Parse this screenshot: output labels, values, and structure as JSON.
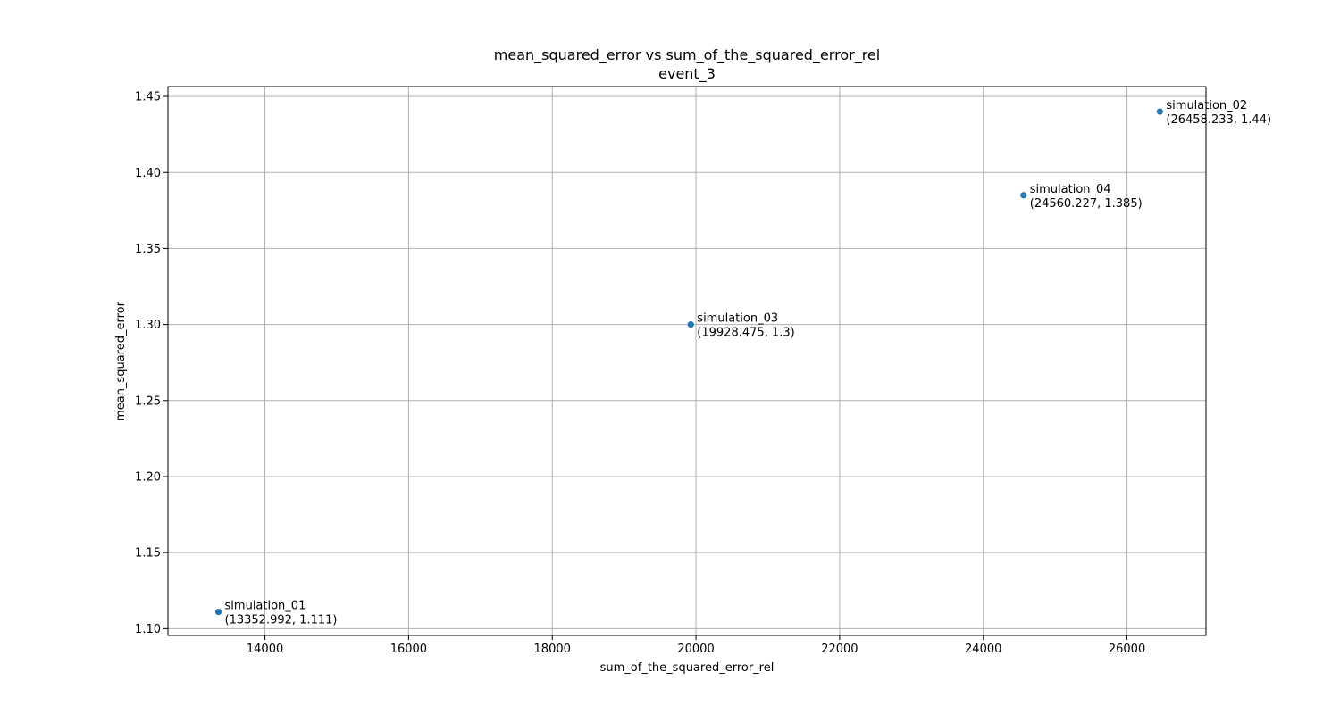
{
  "chart_data": {
    "type": "scatter",
    "title": "mean_squared_error vs sum_of_the_squared_error_rel",
    "subtitle": "event_3",
    "xlabel": "sum_of_the_squared_error_rel",
    "ylabel": "mean_squared_error",
    "xlim": [
      12650,
      27100
    ],
    "ylim": [
      1.0955,
      1.4565
    ],
    "xticks": [
      14000,
      16000,
      18000,
      20000,
      22000,
      24000,
      26000
    ],
    "xtick_labels": [
      "14000",
      "16000",
      "18000",
      "20000",
      "22000",
      "24000",
      "26000"
    ],
    "yticks": [
      1.1,
      1.15,
      1.2,
      1.25,
      1.3,
      1.35,
      1.4,
      1.45
    ],
    "ytick_labels": [
      "1.10",
      "1.15",
      "1.20",
      "1.25",
      "1.30",
      "1.35",
      "1.40",
      "1.45"
    ],
    "grid": true,
    "marker_color": "#1f77b4",
    "points": [
      {
        "label": "simulation_01",
        "coord_text": "(13352.992, 1.111)",
        "x": 13352.992,
        "y": 1.111
      },
      {
        "label": "simulation_02",
        "coord_text": "(26458.233, 1.44)",
        "x": 26458.233,
        "y": 1.44
      },
      {
        "label": "simulation_03",
        "coord_text": "(19928.475, 1.3)",
        "x": 19928.475,
        "y": 1.3
      },
      {
        "label": "simulation_04",
        "coord_text": "(24560.227, 1.385)",
        "x": 24560.227,
        "y": 1.385
      }
    ]
  }
}
